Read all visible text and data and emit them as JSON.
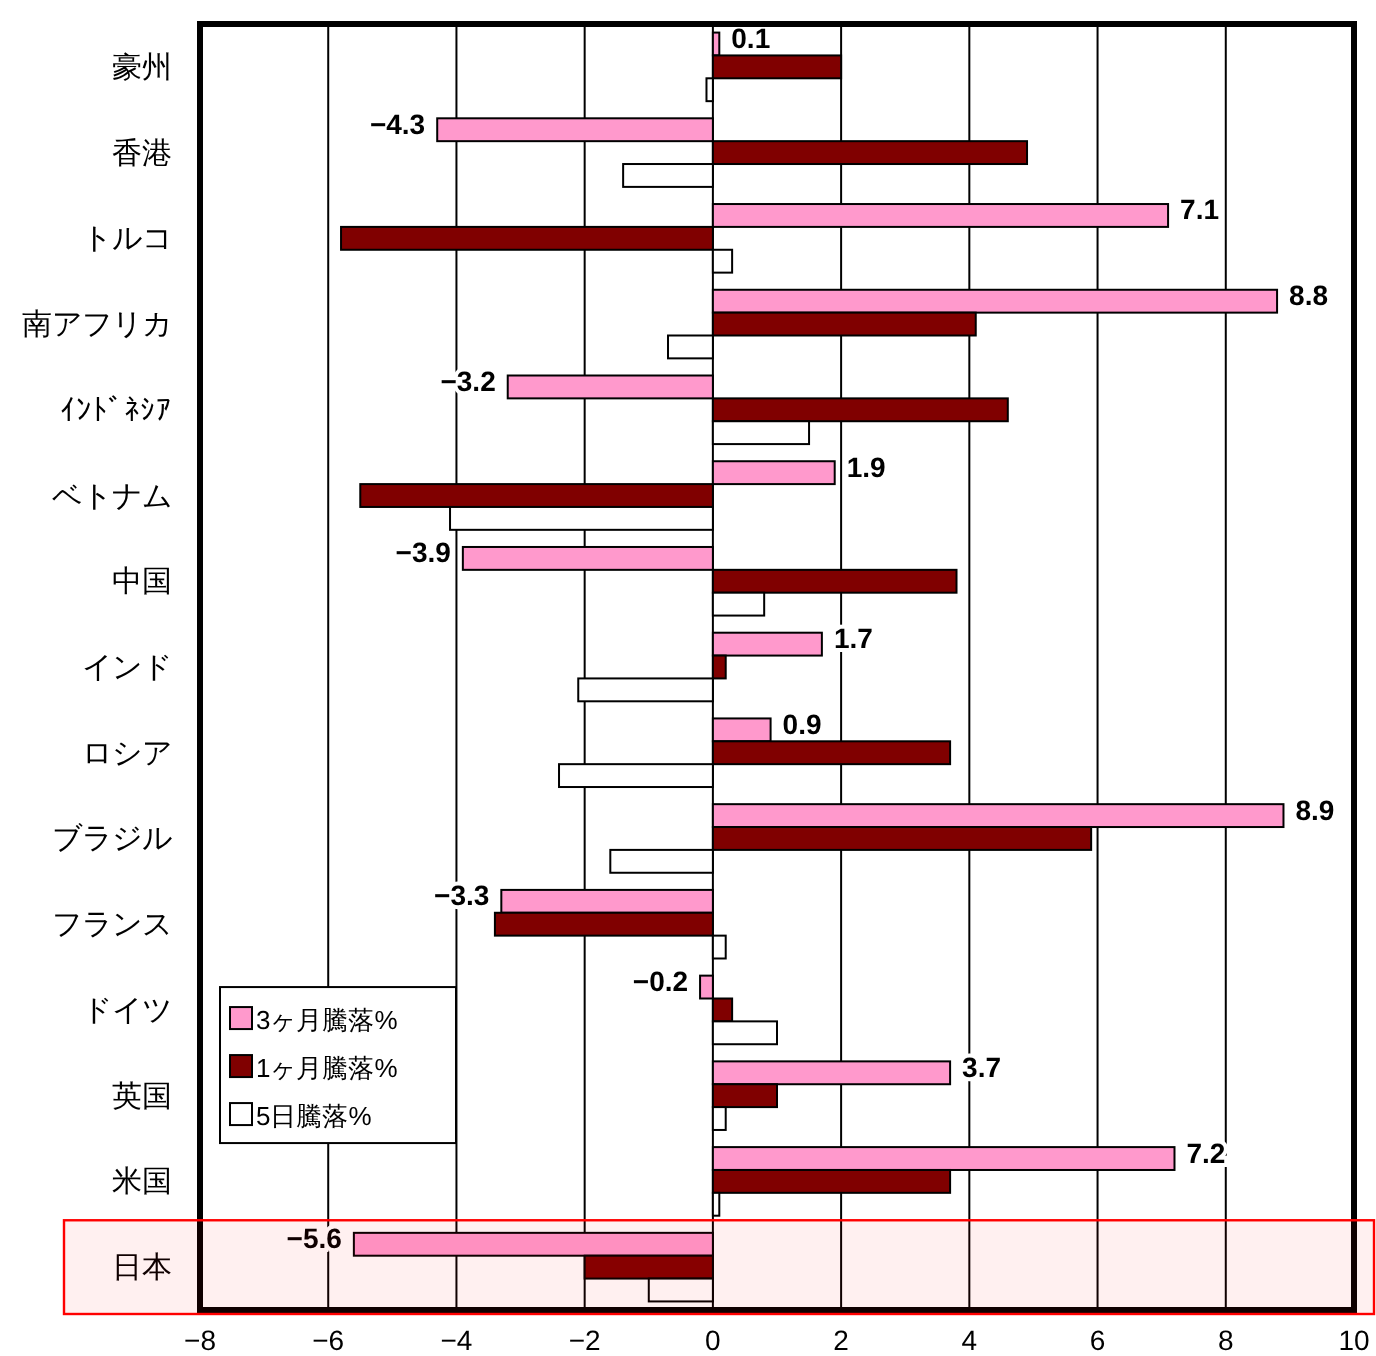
{
  "chart_data": {
    "type": "bar",
    "orientation": "horizontal",
    "categories": [
      "豪州",
      "香港",
      "トルコ",
      "南アフリカ",
      "ｲﾝﾄﾞﾈｼｱ",
      "ベトナム",
      "中国",
      "インド",
      "ロシア",
      "ブラジル",
      "フランス",
      "ドイツ",
      "英国",
      "米国",
      "日本"
    ],
    "series": [
      {
        "name": "3ヶ月騰落%",
        "color": "#ff99cc",
        "values": [
          0.1,
          -4.3,
          7.1,
          8.8,
          -3.2,
          1.9,
          -3.9,
          1.7,
          0.9,
          8.9,
          -3.3,
          -0.2,
          3.7,
          7.2,
          -5.6
        ],
        "value_labels": [
          "0.1",
          "−4.3",
          "7.1",
          "8.8",
          "−3.2",
          "1.9",
          "−3.9",
          "1.7",
          "0.9",
          "8.9",
          "−3.3",
          "−0.2",
          "3.7",
          "7.2",
          "−5.6"
        ]
      },
      {
        "name": "1ヶ月騰落%",
        "color": "#800000",
        "values": [
          2.0,
          4.9,
          -5.8,
          4.1,
          4.6,
          -5.5,
          3.8,
          0.2,
          3.7,
          5.9,
          -3.4,
          0.3,
          1.0,
          3.7,
          -2.0
        ]
      },
      {
        "name": "5日騰落%",
        "color": "#ffffff",
        "values": [
          -0.1,
          -1.4,
          0.3,
          -0.7,
          1.5,
          -4.1,
          0.8,
          -2.1,
          -2.4,
          -1.6,
          0.2,
          1.0,
          0.2,
          0.1,
          -1.0
        ]
      }
    ],
    "xlim": [
      -8,
      10
    ],
    "xticks": [
      -8,
      -6,
      -4,
      -2,
      0,
      2,
      4,
      6,
      8,
      10
    ],
    "grid": "x",
    "legend": "bottom left",
    "bands": [
      {
        "axis": "y",
        "from": "日本",
        "to": "日本",
        "color": "#ff0000"
      }
    ]
  }
}
